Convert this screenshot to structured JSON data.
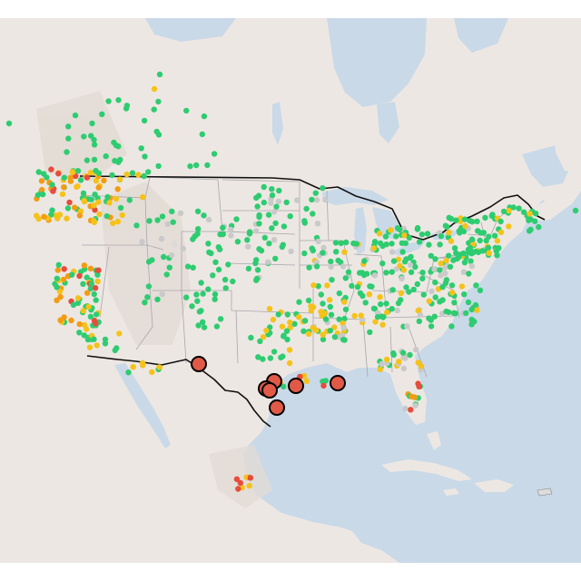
{
  "map": {
    "basemap_colors": {
      "water": "#c9d9e8",
      "land": "#ede7e3",
      "land_shade": "#e3dcd6",
      "state_border": "#a7a7ab",
      "country_border": "#111111",
      "lake": "#c9d9e8"
    },
    "status_colors": {
      "normal": "#2ecc71",
      "watch": "#f5c21a",
      "warning": "#f39c12",
      "alert": "#e74c3c",
      "unknown": "#c9c9c9"
    },
    "highlight_marker": {
      "fill": "#e05a47",
      "stroke": "#000000",
      "count": 7
    },
    "legend": "none",
    "labels": "none"
  }
}
